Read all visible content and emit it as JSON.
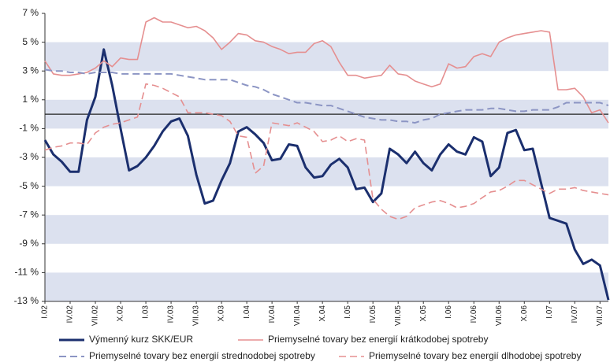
{
  "chart_data": {
    "type": "line",
    "categories": [
      "I.02",
      null,
      null,
      "IV.02",
      null,
      null,
      "VII.02",
      null,
      null,
      "X.02",
      null,
      null,
      "I.03",
      null,
      null,
      "IV.03",
      null,
      null,
      "VII.03",
      null,
      null,
      "X.03",
      null,
      null,
      "I.04",
      null,
      null,
      "IV.04",
      null,
      null,
      "VII.04",
      null,
      null,
      "X.04",
      null,
      null,
      "I.05",
      null,
      null,
      "IV.05",
      null,
      null,
      "VII.05",
      null,
      null,
      "X.05",
      null,
      null,
      "I.06",
      null,
      null,
      "IV.06",
      null,
      null,
      "VII.06",
      null,
      null,
      "X.06",
      null,
      null,
      "I.07",
      null,
      null,
      "IV.07",
      null,
      null,
      "VII.07",
      null
    ],
    "series": [
      {
        "name": "Výmenný kurz SKK/EUR",
        "color": "#1b2f6e",
        "dash": "solid",
        "width": 3,
        "values": [
          -1.8,
          -2.8,
          -3.3,
          -4.0,
          -4.0,
          -0.4,
          1.2,
          4.5,
          2.0,
          -1.0,
          -3.9,
          -3.6,
          -3.0,
          -2.2,
          -1.2,
          -0.5,
          -0.3,
          -1.5,
          -4.2,
          -6.2,
          -6.0,
          -4.6,
          -3.4,
          -1.2,
          -0.9,
          -1.4,
          -2.0,
          -3.2,
          -3.1,
          -2.1,
          -2.2,
          -3.7,
          -4.4,
          -4.3,
          -3.5,
          -3.1,
          -3.7,
          -5.2,
          -5.1,
          -6.1,
          -5.5,
          -2.4,
          -2.8,
          -3.4,
          -2.6,
          -3.4,
          -3.9,
          -2.8,
          -2.1,
          -2.6,
          -2.8,
          -1.6,
          -1.9,
          -4.3,
          -3.7,
          -1.3,
          -1.1,
          -2.5,
          -2.4,
          -4.8,
          -7.2,
          -7.4,
          -7.6,
          -9.4,
          -10.4,
          -10.1,
          -10.5,
          -12.9
        ]
      },
      {
        "name": "Priemyselné tovary bez energií krátkodobej spotreby",
        "color": "#e58f90",
        "dash": "solid",
        "width": 1.6,
        "values": [
          3.7,
          2.8,
          2.7,
          2.7,
          2.8,
          2.9,
          3.2,
          3.7,
          3.3,
          3.9,
          3.8,
          3.8,
          6.4,
          6.7,
          6.4,
          6.4,
          6.2,
          6.0,
          6.1,
          5.8,
          5.3,
          4.5,
          5.0,
          5.6,
          5.5,
          5.1,
          5.0,
          4.7,
          4.5,
          4.2,
          4.3,
          4.3,
          4.9,
          5.1,
          4.7,
          3.6,
          2.7,
          2.7,
          2.5,
          2.6,
          2.7,
          3.4,
          2.8,
          2.7,
          2.3,
          2.1,
          1.9,
          2.1,
          3.5,
          3.2,
          3.3,
          4.0,
          4.2,
          4.0,
          5.0,
          5.3,
          5.5,
          5.6,
          5.7,
          5.8,
          5.7,
          1.7,
          1.7,
          1.8,
          1.2,
          0.1,
          0.3,
          -0.6
        ]
      },
      {
        "name": "Priemyselné tovary bez energií strednodobej spotreby",
        "color": "#8c95c4",
        "dash": "dashed",
        "width": 2,
        "values": [
          3.1,
          3.0,
          3.0,
          2.9,
          2.9,
          2.8,
          2.9,
          2.9,
          2.9,
          2.8,
          2.8,
          2.8,
          2.8,
          2.8,
          2.8,
          2.8,
          2.7,
          2.6,
          2.5,
          2.4,
          2.4,
          2.4,
          2.4,
          2.2,
          2.0,
          1.9,
          1.7,
          1.4,
          1.2,
          1.0,
          0.8,
          0.8,
          0.7,
          0.6,
          0.6,
          0.4,
          0.2,
          0.0,
          -0.2,
          -0.3,
          -0.4,
          -0.4,
          -0.5,
          -0.5,
          -0.6,
          -0.4,
          -0.3,
          0.0,
          0.1,
          0.2,
          0.3,
          0.3,
          0.3,
          0.4,
          0.4,
          0.3,
          0.2,
          0.2,
          0.3,
          0.3,
          0.3,
          0.5,
          0.8,
          0.8,
          0.8,
          0.8,
          0.8,
          0.6
        ]
      },
      {
        "name": "Priemyselné tovary bez energií dlhodobej spotreby",
        "color": "#e58f90",
        "dash": "dashed",
        "width": 1.6,
        "values": [
          -2.5,
          -2.3,
          -2.2,
          -2.0,
          -2.0,
          -2.1,
          -1.3,
          -0.9,
          -0.7,
          -0.6,
          -0.4,
          -0.2,
          2.1,
          2.0,
          1.8,
          1.5,
          1.2,
          0.1,
          0.1,
          0.1,
          0.0,
          -0.1,
          -0.5,
          -1.5,
          -1.6,
          -4.1,
          -3.6,
          -0.6,
          -0.7,
          -0.8,
          -0.6,
          -0.9,
          -1.2,
          -1.9,
          -1.8,
          -1.5,
          -1.9,
          -1.7,
          -1.8,
          -5.9,
          -6.6,
          -7.1,
          -7.3,
          -7.1,
          -6.5,
          -6.3,
          -6.1,
          -6.0,
          -6.2,
          -6.5,
          -6.4,
          -6.2,
          -5.8,
          -5.4,
          -5.3,
          -5.0,
          -4.6,
          -4.6,
          -4.9,
          -5.2,
          -5.5,
          -5.2,
          -5.2,
          -5.1,
          -5.3,
          -5.4,
          -5.5,
          -5.6
        ]
      }
    ],
    "ylim": [
      -13,
      7
    ],
    "yticks": [
      {
        "value": 7,
        "label": "7 %"
      },
      {
        "value": 5,
        "label": "5 %"
      },
      {
        "value": 3,
        "label": "3 %"
      },
      {
        "value": 1,
        "label": "1 %"
      },
      {
        "value": -1,
        "label": "-1 %"
      },
      {
        "value": -3,
        "label": "-3 %"
      },
      {
        "value": -5,
        "label": "-5 %"
      },
      {
        "value": -7,
        "label": "-7 %"
      },
      {
        "value": -9,
        "label": "-9 %"
      },
      {
        "value": -11,
        "label": "-11 %"
      },
      {
        "value": -13,
        "label": "-13 %"
      }
    ],
    "grid": "bands",
    "band_color": "#dce1ef",
    "legend": "bottom"
  }
}
